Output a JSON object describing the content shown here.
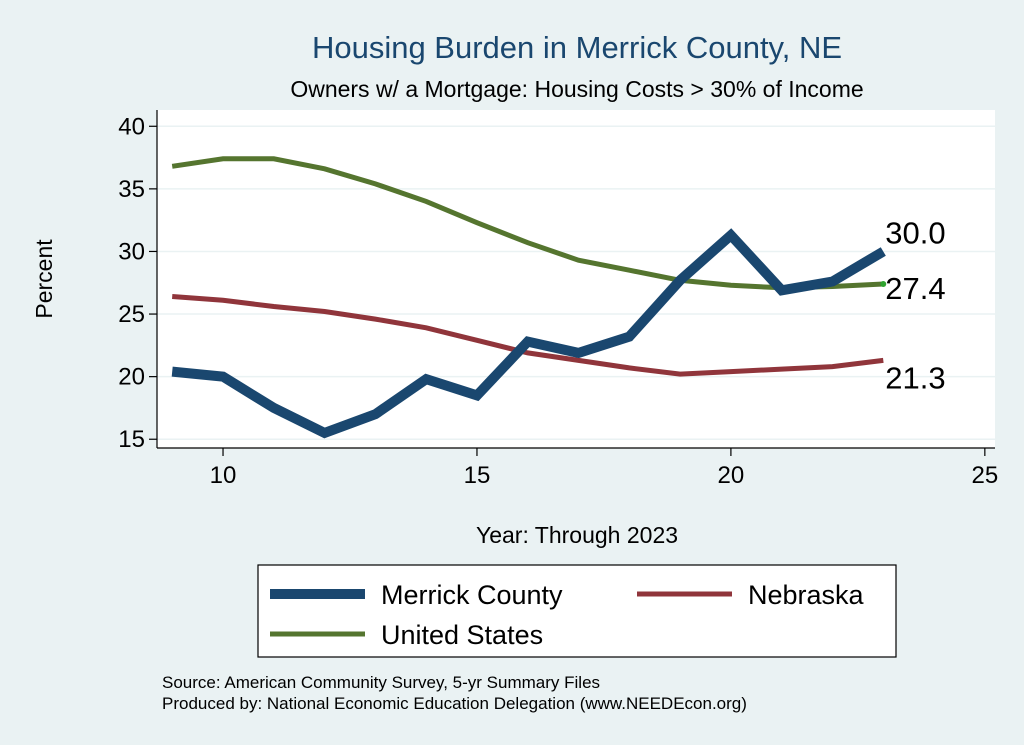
{
  "chart_data": {
    "type": "line",
    "title": "Housing Burden in Merrick County, NE",
    "subtitle": "Owners w/ a Mortgage: Housing Costs > 30% of Income",
    "xlabel": "Year: Through 2023",
    "ylabel": "Percent",
    "xlim": [
      8.7,
      25.2
    ],
    "ylim": [
      14.3,
      41.3
    ],
    "xticks": [
      10,
      15,
      20,
      25
    ],
    "yticks": [
      15,
      20,
      25,
      30,
      35,
      40
    ],
    "xtick_labels": [
      "10",
      "15",
      "20",
      "25"
    ],
    "ytick_labels": [
      "15",
      "20",
      "25",
      "30",
      "35",
      "40"
    ],
    "grid": true,
    "legend_position": "bottom",
    "x": [
      9,
      10,
      11,
      12,
      13,
      14,
      15,
      16,
      17,
      18,
      19,
      20,
      21,
      22,
      23
    ],
    "series": [
      {
        "name": "Merrick County",
        "color": "#1a476f",
        "values": [
          20.4,
          20.0,
          17.5,
          15.5,
          17.0,
          19.8,
          18.5,
          22.8,
          21.9,
          23.2,
          27.7,
          31.3,
          26.9,
          27.6,
          30.0
        ],
        "end_label": "30.0"
      },
      {
        "name": "Nebraska",
        "color": "#90353b",
        "values": [
          26.4,
          26.1,
          25.6,
          25.2,
          24.6,
          23.9,
          22.9,
          21.9,
          21.3,
          20.7,
          20.2,
          20.4,
          20.6,
          20.8,
          21.3
        ],
        "end_label": "21.3"
      },
      {
        "name": "United States",
        "color": "#55752f",
        "values": [
          36.8,
          37.4,
          37.4,
          36.6,
          35.4,
          34.0,
          32.3,
          30.7,
          29.3,
          28.5,
          27.7,
          27.3,
          27.1,
          27.2,
          27.4
        ],
        "end_label": "27.4"
      }
    ]
  },
  "notes": {
    "source": "Source: American Community Survey, 5-yr Summary Files",
    "produced": "Produced by: National Economic Education Delegation (www.NEEDEcon.org)"
  }
}
